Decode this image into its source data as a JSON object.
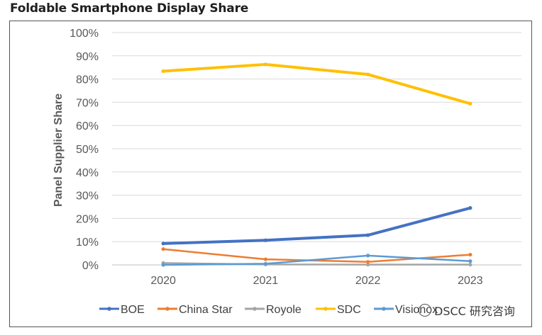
{
  "chart_data": {
    "type": "line",
    "title": "Foldable Smartphone Display Share",
    "xlabel": "",
    "ylabel": "Panel Supplier Share",
    "categories": [
      "2020",
      "2021",
      "2022",
      "2023"
    ],
    "ylim": [
      0,
      100
    ],
    "yticks": [
      "0%",
      "10%",
      "20%",
      "30%",
      "40%",
      "50%",
      "60%",
      "70%",
      "80%",
      "90%",
      "100%"
    ],
    "grid": true,
    "legend_position": "bottom",
    "series": [
      {
        "name": "BOE",
        "values": [
          9.2,
          10.6,
          12.8,
          24.5
        ],
        "color": "#4472C4",
        "width": 4
      },
      {
        "name": "China Star",
        "values": [
          6.8,
          2.4,
          1.3,
          4.4
        ],
        "color": "#ED7D31",
        "width": 2.5
      },
      {
        "name": "Royole",
        "values": [
          0.8,
          0.2,
          0.1,
          0.1
        ],
        "color": "#A5A5A5",
        "width": 2.5
      },
      {
        "name": "SDC",
        "values": [
          83.4,
          86.3,
          82.0,
          69.4
        ],
        "color": "#FFC000",
        "width": 4
      },
      {
        "name": "Visionox",
        "values": [
          0.0,
          0.5,
          4.0,
          1.6
        ],
        "color": "#5B9BD5",
        "width": 2.5
      }
    ]
  },
  "watermark": {
    "text": "DSCC 研究咨询"
  }
}
